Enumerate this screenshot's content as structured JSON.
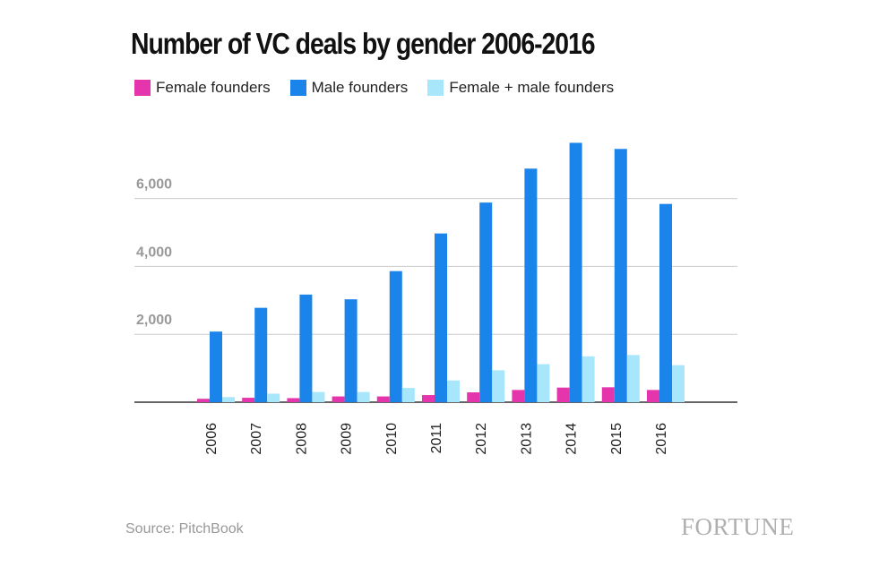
{
  "chart_data": {
    "type": "bar",
    "title": "Number of VC deals by gender 2006-2016",
    "categories": [
      "2006",
      "2007",
      "2008",
      "2009",
      "2010",
      "2011",
      "2012",
      "2013",
      "2014",
      "2015",
      "2016"
    ],
    "series": [
      {
        "name": "Female founders",
        "color": "#e535ad",
        "values": [
          100,
          130,
          120,
          170,
          170,
          210,
          290,
          360,
          430,
          440,
          360
        ]
      },
      {
        "name": "Male founders",
        "color": "#1b84ea",
        "values": [
          2080,
          2780,
          3170,
          3030,
          3860,
          4970,
          5880,
          6880,
          7640,
          7460,
          5840
        ]
      },
      {
        "name": "Female + male founders",
        "color": "#a7e6fb",
        "values": [
          150,
          250,
          300,
          300,
          420,
          640,
          940,
          1120,
          1350,
          1390,
          1090
        ]
      }
    ],
    "y_ticks": [
      2000,
      4000,
      6000
    ],
    "y_tick_labels": [
      "2,000",
      "4,000",
      "6,000"
    ],
    "ylim": [
      0,
      8000
    ],
    "grid": true,
    "legend_position": "top-left",
    "xlabel": "",
    "ylabel": ""
  },
  "source_text": "Source: PitchBook",
  "logo_text": "FORTUNE"
}
